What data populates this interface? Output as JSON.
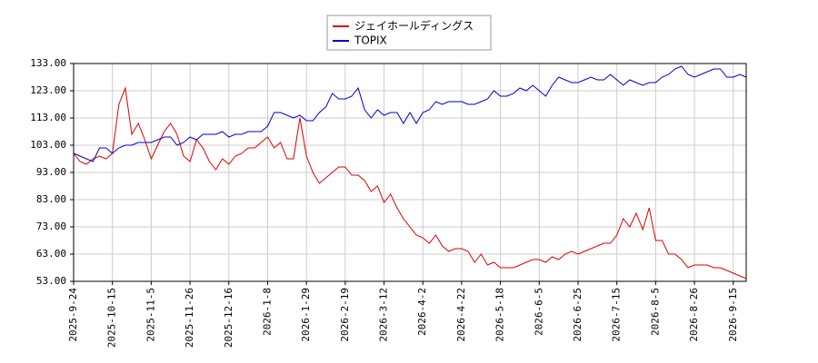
{
  "chart_data": {
    "type": "line",
    "categories": [
      "2025-9-24",
      null,
      null,
      null,
      null,
      null,
      "2025-10-15",
      null,
      null,
      null,
      null,
      null,
      "2025-11-5",
      null,
      null,
      null,
      null,
      null,
      "2025-11-26",
      null,
      null,
      null,
      null,
      null,
      "2025-12-16",
      null,
      null,
      null,
      null,
      null,
      "2026-1-8",
      null,
      null,
      null,
      null,
      null,
      "2026-1-29",
      null,
      null,
      null,
      null,
      null,
      "2026-2-19",
      null,
      null,
      null,
      null,
      null,
      "2026-3-12",
      null,
      null,
      null,
      null,
      null,
      "2026-4-2",
      null,
      null,
      null,
      null,
      null,
      "2026-4-22",
      null,
      null,
      null,
      null,
      null,
      "2026-5-18",
      null,
      null,
      null,
      null,
      null,
      "2026-6-5",
      null,
      null,
      null,
      null,
      null,
      "2026-6-25",
      null,
      null,
      null,
      null,
      null,
      "2026-7-15",
      null,
      null,
      null,
      null,
      null,
      "2026-8-5",
      null,
      null,
      null,
      null,
      null,
      "2026-8-26",
      null,
      null,
      null,
      null,
      null,
      "2026-9-15",
      null,
      null
    ],
    "series": [
      {
        "name": "ジェイホールディングス",
        "color": "#dd0000",
        "values": [
          100,
          97,
          96,
          98,
          99,
          98,
          100,
          118,
          124,
          107,
          111,
          105,
          98,
          103,
          108,
          111,
          107,
          99,
          97,
          105,
          102,
          97,
          94,
          98,
          96,
          99,
          100,
          102,
          102,
          104,
          106,
          102,
          104,
          98,
          98,
          113,
          99,
          93,
          89,
          91,
          93,
          95,
          95,
          92,
          92,
          90,
          86,
          88,
          82,
          85,
          80,
          76,
          73,
          70,
          69,
          67,
          70,
          66,
          64,
          65,
          65,
          64,
          60,
          63,
          59,
          60,
          58,
          58,
          58,
          59,
          60,
          61,
          61,
          60,
          62,
          61,
          63,
          64,
          63,
          64,
          65,
          66,
          67,
          67,
          70,
          76,
          73,
          78,
          72,
          80,
          68,
          68,
          63,
          63,
          61,
          58,
          59,
          59,
          59,
          58,
          58,
          57,
          56,
          55,
          54
        ]
      },
      {
        "name": "TOPIX",
        "color": "#0000cc",
        "values": [
          100,
          99,
          98,
          97,
          102,
          102,
          100,
          102,
          103,
          103,
          104,
          104,
          104,
          105,
          106,
          106,
          103,
          104,
          106,
          105,
          107,
          107,
          107,
          108,
          106,
          107,
          107,
          108,
          108,
          108,
          110,
          115,
          115,
          114,
          113,
          114,
          112,
          112,
          115,
          117,
          122,
          120,
          120,
          121,
          124,
          116,
          113,
          116,
          114,
          115,
          115,
          111,
          115,
          111,
          115,
          116,
          119,
          118,
          119,
          119,
          119,
          118,
          118,
          119,
          120,
          123,
          121,
          121,
          122,
          124,
          123,
          125,
          123,
          121,
          125,
          128,
          127,
          126,
          126,
          127,
          128,
          127,
          127,
          129,
          127,
          125,
          127,
          126,
          125,
          126,
          126,
          128,
          129,
          131,
          132,
          129,
          128,
          129,
          130,
          131,
          131,
          128,
          128,
          129,
          128
        ]
      }
    ],
    "ylim": [
      53,
      133
    ],
    "yticks": [
      {
        "value": 53,
        "label": "53.00"
      },
      {
        "value": 63,
        "label": "63.00"
      },
      {
        "value": 73,
        "label": "73.00"
      },
      {
        "value": 83,
        "label": "83.00"
      },
      {
        "value": 93,
        "label": "93.00"
      },
      {
        "value": 103,
        "label": "103.00"
      },
      {
        "value": 113,
        "label": "113.00"
      },
      {
        "value": 123,
        "label": "123.00"
      },
      {
        "value": 133,
        "label": "133.00"
      }
    ],
    "grid": true
  }
}
